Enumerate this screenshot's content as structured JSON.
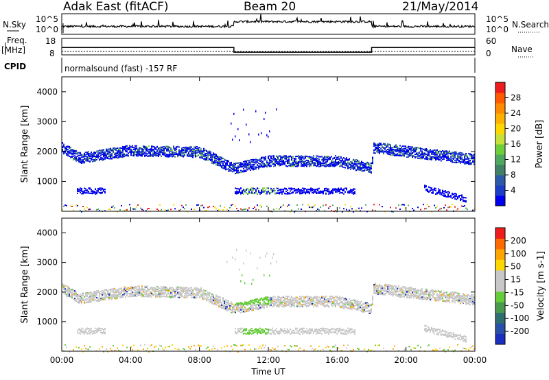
{
  "header": {
    "station": "Adak East (fitACF)",
    "beam": "Beam 20",
    "date": "21/May/2014"
  },
  "strip_labels": {
    "nsky": "N.Sky",
    "nsky_top": "10^5",
    "nsky_bottom": "10^0",
    "nsearch": "N.Search",
    "nsearch_top": "10^5",
    "nsearch_bottom": "10^0",
    "freq": "Freq.",
    "freq_unit": "[MHz]",
    "freq_top": "18",
    "freq_bottom": "8",
    "nave": "Nave",
    "nave_top": "60",
    "nave_bottom": "0",
    "cpid": "CPID",
    "cpid_text": "normalsound (fast) -157 RF"
  },
  "power_colorbar": {
    "label": "Power [dB]",
    "ticks": [
      "28",
      "24",
      "20",
      "16",
      "12",
      "8",
      "4"
    ],
    "colors": [
      "#0000ee",
      "#1c3fc8",
      "#2a5aa8",
      "#3f8066",
      "#4ea860",
      "#6ece3a",
      "#c8e03a",
      "#ffd700",
      "#ffb000",
      "#ff8a00",
      "#ff5a00",
      "#ee1c1c"
    ]
  },
  "velocity_colorbar": {
    "label": "Velocity [m s-1]",
    "ticks": [
      "200",
      "100",
      "50",
      "15",
      "-15",
      "-50",
      "-100",
      "-200"
    ],
    "colors": [
      "#1a2fbd",
      "#2a4fa8",
      "#2e6e70",
      "#4a9a4e",
      "#66cc3a",
      "#c8c8c8",
      "#c8c8c8",
      "#ffd700",
      "#ffa500",
      "#ff6a00",
      "#ee1c1c"
    ]
  },
  "chart_data": {
    "type": "heatmap",
    "title": "Adak East (fitACF) Beam 20 21/May/2014",
    "xlabel": "Time UT",
    "x_ticks": [
      "00:00",
      "04:00",
      "08:00",
      "12:00",
      "16:00",
      "20:00",
      "00:00"
    ],
    "xlim_hours": [
      0,
      24
    ],
    "panels": [
      {
        "name": "power",
        "ylabel": "Slant Range [km]",
        "ylim": [
          0,
          4500
        ],
        "y_ticks": [
          "1000",
          "2000",
          "3000",
          "4000"
        ],
        "backscatter_band_km": [
          [
            0,
            2150
          ],
          [
            1,
            1800
          ],
          [
            4,
            2050
          ],
          [
            8,
            2000
          ],
          [
            10,
            1450
          ],
          [
            12,
            1700
          ],
          [
            16,
            1700
          ],
          [
            18,
            1450
          ],
          [
            18.05,
            2150
          ],
          [
            21,
            1950
          ],
          [
            24,
            1750
          ]
        ],
        "typical_power_db": [
          4,
          12
        ]
      },
      {
        "name": "velocity",
        "ylabel": "Slant Range [km]",
        "ylim": [
          0,
          4500
        ],
        "y_ticks": [
          "1000",
          "2000",
          "3000",
          "4000"
        ],
        "typical_velocity_ms": [
          -15,
          15
        ]
      }
    ],
    "frequency_mhz": [
      [
        0,
        12.5
      ],
      [
        10,
        9.6
      ],
      [
        18,
        12.5
      ],
      [
        24,
        12.5
      ]
    ]
  }
}
